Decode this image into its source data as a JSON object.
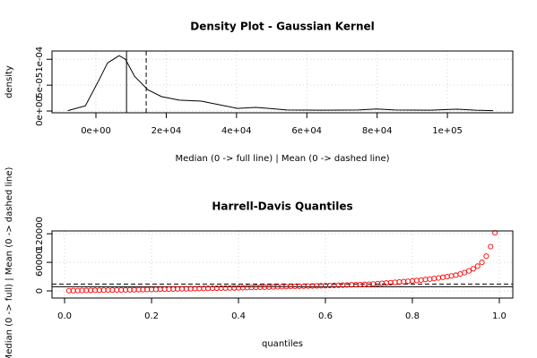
{
  "chart_data": [
    {
      "type": "line",
      "title": "Density Plot - Gaussian Kernel",
      "x_label": "Median (0 -> full line) | Mean (0 -> dashed line)",
      "y_label": "density",
      "x": [
        -8000,
        -3000,
        800,
        3300,
        6600,
        8400,
        11000,
        14800,
        18600,
        23700,
        30000,
        35200,
        40300,
        45400,
        49200,
        54300,
        64500,
        74700,
        79800,
        85000,
        95000,
        102800,
        108000,
        113000
      ],
      "values": [
        7e-07,
        1e-05,
        5.9e-05,
        9.3e-05,
        0.000107,
        0.0001,
        6.7e-05,
        4.1e-05,
        2.8e-05,
        2.1e-05,
        1.9e-05,
        1.2e-05,
        5e-06,
        7e-06,
        5e-06,
        2e-06,
        1.5e-06,
        2e-06,
        4e-06,
        2e-06,
        1.5e-06,
        3.5e-06,
        1.5e-06,
        7e-07
      ],
      "color": "#000000",
      "median": 8700,
      "mean": 14300,
      "grid": true,
      "xlim": [
        -12500,
        118600
      ],
      "xticks": [
        {
          "value": 0,
          "label": "0e+00"
        },
        {
          "value": 20000,
          "label": "2e+04"
        },
        {
          "value": 40000,
          "label": "4e+04"
        },
        {
          "value": 60000,
          "label": "6e+04"
        },
        {
          "value": 80000,
          "label": "8e+04"
        },
        {
          "value": 100000,
          "label": "1e+05"
        }
      ],
      "ylim": [
        -3.4e-06,
        0.000116
      ],
      "yticks": [
        {
          "value": 0,
          "label": "0e+00"
        },
        {
          "value": 5e-05,
          "label": "5e-05"
        },
        {
          "value": 0.0001,
          "label": "1e-04"
        }
      ]
    },
    {
      "type": "scatter",
      "title": "Harrell-Davis Quantiles",
      "x_label": "quantiles",
      "y_label": "Median (0 -> full) | Mean (0 -> dashed line)",
      "x": [
        0.01,
        0.02,
        0.03,
        0.04,
        0.05,
        0.06,
        0.07,
        0.08,
        0.09,
        0.1,
        0.11,
        0.12,
        0.13,
        0.14,
        0.15,
        0.16,
        0.17,
        0.18,
        0.19,
        0.2,
        0.21,
        0.22,
        0.23,
        0.24,
        0.25,
        0.26,
        0.27,
        0.28,
        0.29,
        0.3,
        0.31,
        0.32,
        0.33,
        0.34,
        0.35,
        0.36,
        0.37,
        0.38,
        0.39,
        0.4,
        0.41,
        0.42,
        0.43,
        0.44,
        0.45,
        0.46,
        0.47,
        0.48,
        0.49,
        0.5,
        0.51,
        0.52,
        0.53,
        0.54,
        0.55,
        0.56,
        0.57,
        0.58,
        0.59,
        0.6,
        0.61,
        0.62,
        0.63,
        0.64,
        0.65,
        0.66,
        0.67,
        0.68,
        0.69,
        0.7,
        0.71,
        0.72,
        0.73,
        0.74,
        0.75,
        0.76,
        0.77,
        0.78,
        0.79,
        0.8,
        0.81,
        0.82,
        0.83,
        0.84,
        0.85,
        0.86,
        0.87,
        0.88,
        0.89,
        0.9,
        0.91,
        0.92,
        0.93,
        0.94,
        0.95,
        0.96,
        0.97,
        0.98,
        0.99
      ],
      "values": [
        500,
        630,
        760,
        890,
        1020,
        1150,
        1280,
        1410,
        1540,
        1670,
        1800,
        1930,
        2060,
        2190,
        2320,
        2450,
        2580,
        2710,
        2840,
        3000,
        3170,
        3350,
        3520,
        3700,
        3870,
        4050,
        4220,
        4400,
        4570,
        4750,
        4920,
        5100,
        5270,
        5450,
        5620,
        5800,
        5970,
        6150,
        6320,
        6500,
        6720,
        6950,
        7170,
        7400,
        7620,
        7850,
        8070,
        8300,
        8520,
        8750,
        8970,
        9200,
        9420,
        9650,
        9870,
        10100,
        10320,
        10550,
        10770,
        11000,
        11300,
        11600,
        11900,
        12200,
        12500,
        12800,
        13100,
        13400,
        13700,
        14000,
        14600,
        15200,
        15900,
        16600,
        17300,
        18000,
        18700,
        19400,
        20200,
        21000,
        21900,
        22800,
        23800,
        24800,
        26000,
        27200,
        28500,
        30000,
        31500,
        33000,
        35500,
        38500,
        42000,
        46500,
        52000,
        60000,
        73000,
        93000,
        122000
      ],
      "color": "#ff0000",
      "median": 8700,
      "mean": 14300,
      "grid": true,
      "xlim": [
        -0.029,
        1.031
      ],
      "xticks": [
        {
          "value": 0,
          "label": "0.0"
        },
        0.2,
        0.4,
        0.6,
        0.8,
        {
          "value": 1,
          "label": "1.0"
        }
      ],
      "ylim": [
        -15000,
        126000
      ],
      "yticks": [
        0,
        60000,
        120000
      ]
    }
  ]
}
